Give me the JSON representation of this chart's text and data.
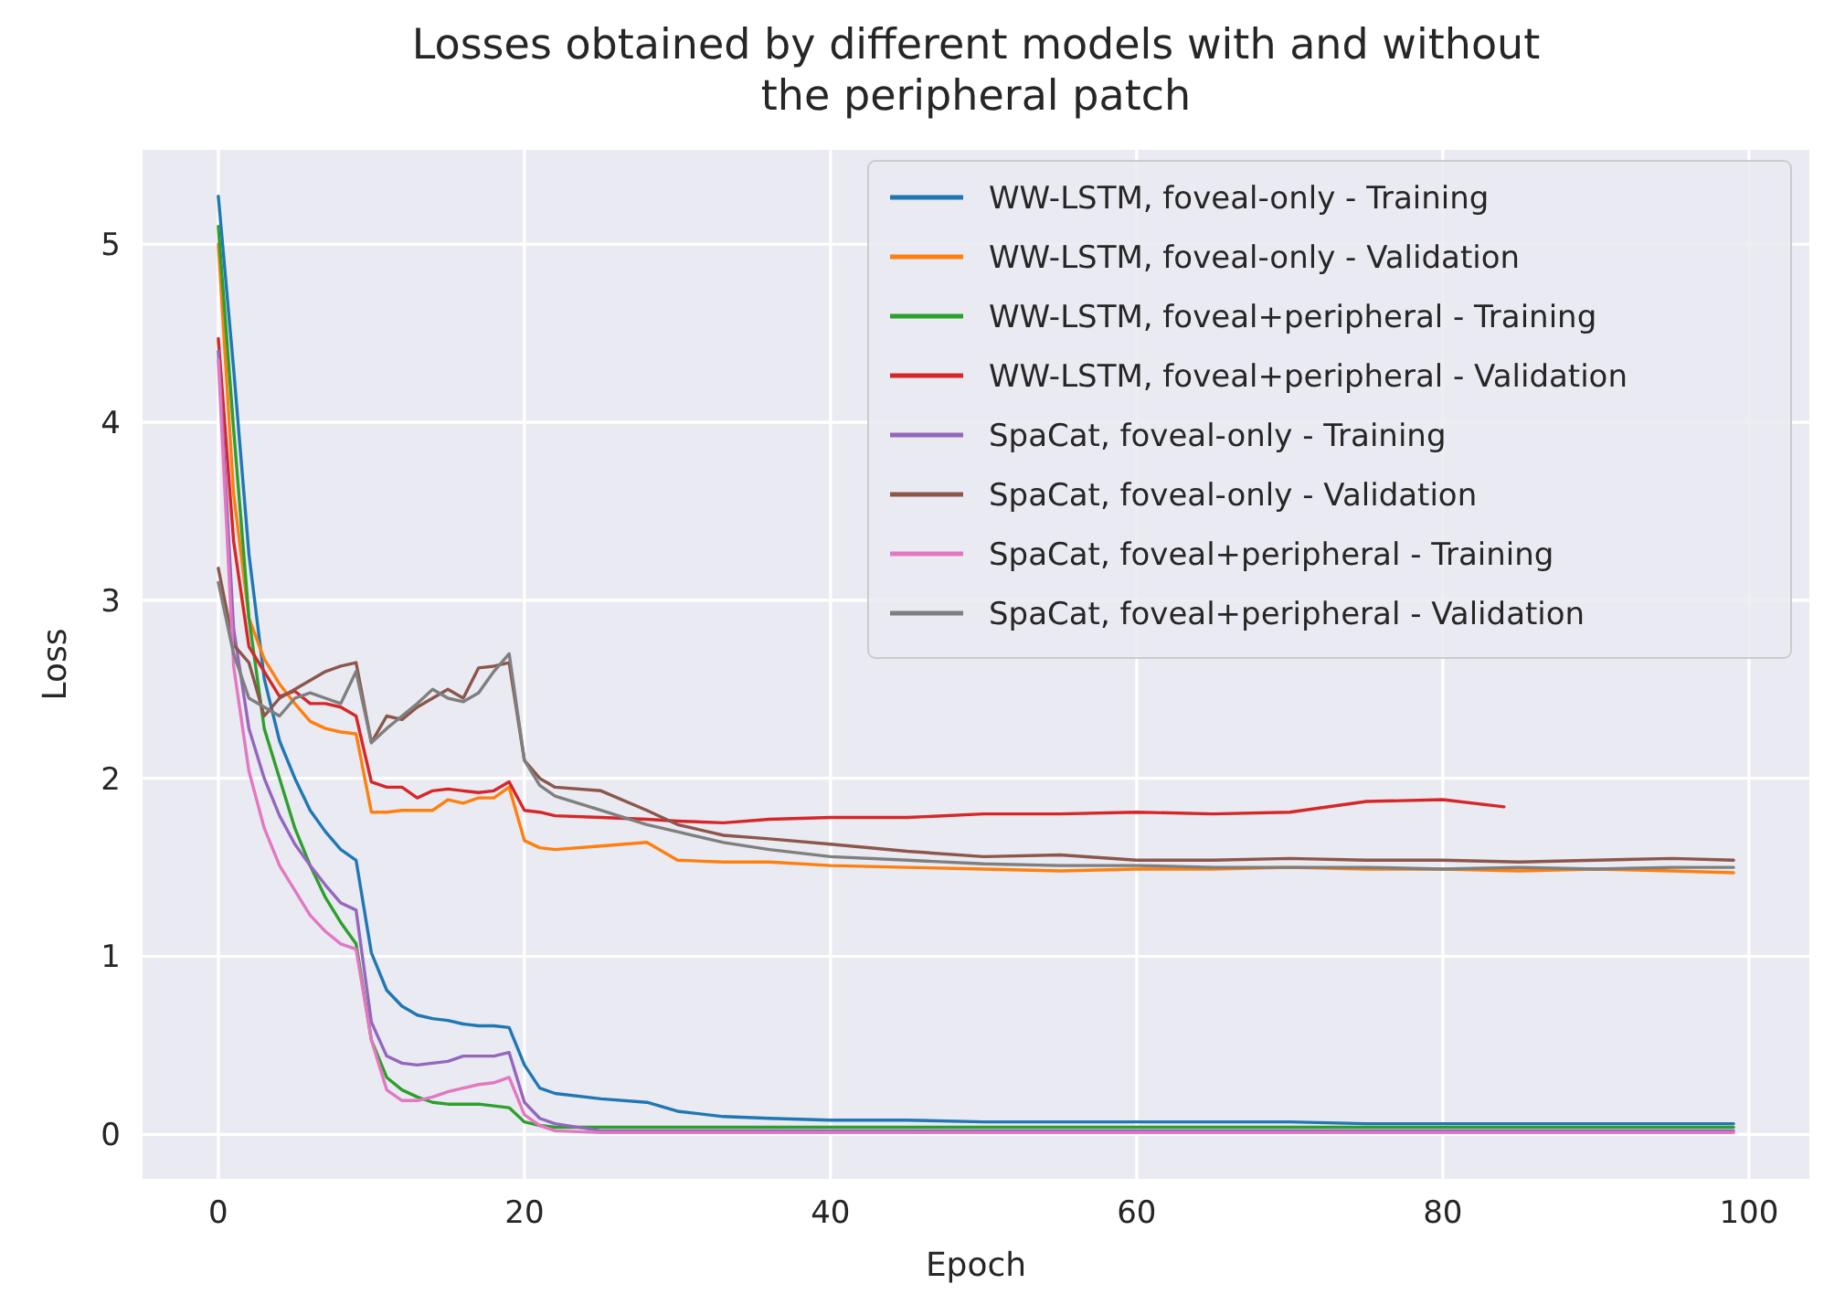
{
  "chart_data": {
    "type": "line",
    "title": "Losses obtained by different models with and without\nthe peripheral patch",
    "xlabel": "Epoch",
    "ylabel": "Loss",
    "x": [
      0,
      1,
      2,
      3,
      4,
      5,
      6,
      7,
      8,
      9,
      10,
      11,
      12,
      13,
      14,
      15,
      16,
      17,
      18,
      19,
      20,
      21,
      22,
      25,
      28,
      30,
      33,
      36,
      40,
      45,
      50,
      55,
      60,
      65,
      70,
      75,
      80,
      85,
      90,
      95,
      99
    ],
    "xlim": [
      -4.95,
      103.95
    ],
    "xticks": [
      0,
      20,
      40,
      60,
      80,
      100
    ],
    "ylim": [
      -0.25,
      5.53
    ],
    "yticks": [
      0,
      1,
      2,
      3,
      4,
      5
    ],
    "grid": true,
    "legend": "top right",
    "line_style": "solid",
    "marker": "none",
    "series": [
      {
        "name": "WW-LSTM, foveal-only - Training",
        "color": "#1f77b4",
        "values": [
          5.27,
          4.3,
          3.26,
          2.56,
          2.21,
          2.0,
          1.82,
          1.7,
          1.6,
          1.54,
          1.02,
          0.81,
          0.72,
          0.67,
          0.65,
          0.64,
          0.62,
          0.61,
          0.61,
          0.6,
          0.39,
          0.26,
          0.23,
          0.2,
          0.18,
          0.13,
          0.1,
          0.09,
          0.08,
          0.08,
          0.07,
          0.07,
          0.07,
          0.07,
          0.07,
          0.06,
          0.06,
          0.06,
          0.06,
          0.06,
          0.06
        ]
      },
      {
        "name": "WW-LSTM, foveal-only - Validation",
        "color": "#ff7f0e",
        "values": [
          5.0,
          3.6,
          2.9,
          2.67,
          2.53,
          2.42,
          2.32,
          2.28,
          2.26,
          2.25,
          1.81,
          1.81,
          1.82,
          1.82,
          1.82,
          1.88,
          1.86,
          1.89,
          1.89,
          1.95,
          1.65,
          1.61,
          1.6,
          1.62,
          1.64,
          1.54,
          1.53,
          1.53,
          1.51,
          1.5,
          1.49,
          1.48,
          1.49,
          1.49,
          1.5,
          1.49,
          1.49,
          1.48,
          1.49,
          1.48,
          1.47
        ]
      },
      {
        "name": "WW-LSTM, foveal+peripheral - Training",
        "color": "#2ca02c",
        "values": [
          5.1,
          3.96,
          2.9,
          2.28,
          2.0,
          1.72,
          1.51,
          1.33,
          1.19,
          1.07,
          0.53,
          0.32,
          0.25,
          0.21,
          0.18,
          0.17,
          0.17,
          0.17,
          0.16,
          0.15,
          0.07,
          0.05,
          0.04,
          0.04,
          0.04,
          0.04,
          0.04,
          0.04,
          0.04,
          0.04,
          0.04,
          0.04,
          0.04,
          0.04,
          0.04,
          0.04,
          0.04,
          0.04,
          0.04,
          0.04,
          0.04
        ]
      },
      {
        "name": "WW-LSTM, foveal+peripheral - Validation",
        "color": "#d62728",
        "x": [
          0,
          1,
          2,
          3,
          4,
          5,
          6,
          7,
          8,
          9,
          10,
          11,
          12,
          13,
          14,
          15,
          16,
          17,
          18,
          19,
          20,
          21,
          22,
          25,
          28,
          30,
          33,
          36,
          40,
          45,
          50,
          55,
          60,
          65,
          70,
          75,
          80,
          84
        ],
        "values": [
          4.47,
          3.33,
          2.74,
          2.6,
          2.46,
          2.49,
          2.42,
          2.42,
          2.4,
          2.35,
          1.98,
          1.95,
          1.95,
          1.89,
          1.93,
          1.94,
          1.93,
          1.92,
          1.93,
          1.98,
          1.82,
          1.81,
          1.79,
          1.78,
          1.77,
          1.76,
          1.75,
          1.77,
          1.78,
          1.78,
          1.8,
          1.8,
          1.81,
          1.8,
          1.81,
          1.87,
          1.88,
          1.84
        ]
      },
      {
        "name": "SpaCat, foveal-only - Training",
        "color": "#9467bd",
        "values": [
          4.4,
          2.84,
          2.28,
          2.0,
          1.79,
          1.63,
          1.51,
          1.4,
          1.3,
          1.26,
          0.63,
          0.44,
          0.4,
          0.39,
          0.4,
          0.41,
          0.44,
          0.44,
          0.44,
          0.46,
          0.18,
          0.09,
          0.06,
          0.02,
          0.02,
          0.02,
          0.02,
          0.02,
          0.02,
          0.02,
          0.02,
          0.02,
          0.02,
          0.02,
          0.02,
          0.02,
          0.02,
          0.02,
          0.02,
          0.02,
          0.02
        ]
      },
      {
        "name": "SpaCat, foveal-only - Validation",
        "color": "#8c564b",
        "values": [
          3.18,
          2.75,
          2.65,
          2.35,
          2.45,
          2.5,
          2.55,
          2.6,
          2.63,
          2.65,
          2.2,
          2.35,
          2.33,
          2.4,
          2.45,
          2.5,
          2.45,
          2.62,
          2.63,
          2.65,
          2.1,
          2.0,
          1.95,
          1.93,
          1.82,
          1.74,
          1.68,
          1.66,
          1.63,
          1.59,
          1.56,
          1.57,
          1.54,
          1.54,
          1.55,
          1.54,
          1.54,
          1.53,
          1.54,
          1.55,
          1.54
        ]
      },
      {
        "name": "SpaCat, foveal+peripheral - Training",
        "color": "#e377c2",
        "values": [
          4.35,
          2.63,
          2.04,
          1.72,
          1.51,
          1.37,
          1.23,
          1.14,
          1.07,
          1.04,
          0.53,
          0.25,
          0.19,
          0.19,
          0.21,
          0.24,
          0.26,
          0.28,
          0.29,
          0.32,
          0.11,
          0.05,
          0.02,
          0.01,
          0.01,
          0.01,
          0.01,
          0.01,
          0.01,
          0.01,
          0.01,
          0.01,
          0.01,
          0.01,
          0.01,
          0.01,
          0.01,
          0.01,
          0.01,
          0.01,
          0.01
        ]
      },
      {
        "name": "SpaCat, foveal+peripheral - Validation",
        "color": "#7f7f7f",
        "values": [
          3.1,
          2.7,
          2.45,
          2.4,
          2.35,
          2.45,
          2.48,
          2.45,
          2.42,
          2.6,
          2.2,
          2.28,
          2.35,
          2.42,
          2.5,
          2.45,
          2.43,
          2.48,
          2.6,
          2.7,
          2.1,
          1.96,
          1.9,
          1.82,
          1.74,
          1.7,
          1.64,
          1.6,
          1.56,
          1.54,
          1.52,
          1.51,
          1.51,
          1.5,
          1.5,
          1.5,
          1.49,
          1.5,
          1.49,
          1.5,
          1.5
        ]
      }
    ]
  }
}
